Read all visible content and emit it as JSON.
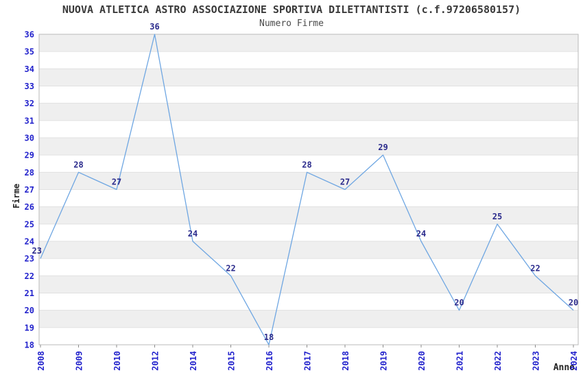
{
  "header": {
    "title": "NUOVA ATLETICA ASTRO ASSOCIAZIONE SPORTIVA DILETTANTISTI (c.f.97206580157)",
    "subtitle": "Numero Firme"
  },
  "axes": {
    "x_title": "Anno",
    "y_title": "Firme"
  },
  "chart_data": {
    "type": "line",
    "title": "Numero Firme",
    "xlabel": "Anno",
    "ylabel": "Firme",
    "x": [
      "2008",
      "2009",
      "2010",
      "2012",
      "2014",
      "2015",
      "2016",
      "2017",
      "2018",
      "2019",
      "2020",
      "2021",
      "2022",
      "2023",
      "2024"
    ],
    "values": [
      23,
      28,
      27,
      36,
      24,
      22,
      18,
      28,
      27,
      29,
      24,
      20,
      25,
      22,
      20
    ],
    "ylim": [
      18,
      36
    ],
    "y_ticks": [
      18,
      19,
      20,
      21,
      22,
      23,
      24,
      25,
      26,
      27,
      28,
      29,
      30,
      31,
      32,
      33,
      34,
      35,
      36
    ],
    "grid": "horizontal",
    "background_bands": "alternate gray/white per unit",
    "legend": "none",
    "data_labels": true,
    "colors": {
      "line": "#6EA6E2",
      "tick_label": "#2222CC",
      "data_label": "#2B2B8C",
      "band": "#EFEFEF",
      "gridline": "#E0E0E0",
      "border": "#B9B9B9",
      "tick_mark": "#8C8C8C",
      "title_text": "#3A3A3A"
    }
  }
}
